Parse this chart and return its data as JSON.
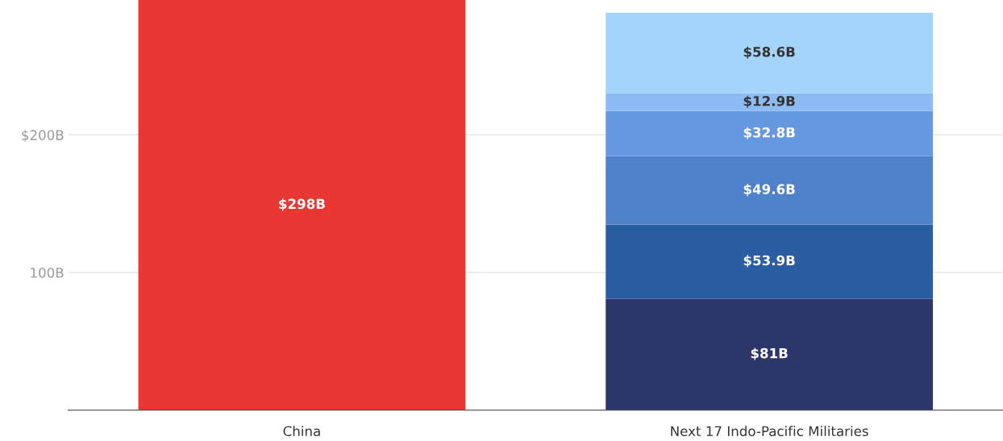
{
  "chart_data": {
    "type": "bar",
    "stacked": true,
    "categories": [
      "China",
      "Next 17 Indo-Pacific Militaries"
    ],
    "series": [
      {
        "color": "#e93833",
        "values": [
          298,
          null
        ],
        "value_labels": [
          "$298B",
          null
        ]
      },
      {
        "color": "#2d366b",
        "values": [
          null,
          81
        ],
        "value_labels": [
          null,
          "$81B"
        ]
      },
      {
        "color": "#2a5da1",
        "values": [
          null,
          53.9
        ],
        "value_labels": [
          null,
          "$53.9B"
        ]
      },
      {
        "color": "#4f82ca",
        "values": [
          null,
          49.6
        ],
        "value_labels": [
          null,
          "$49.6B"
        ]
      },
      {
        "color": "#6698e2",
        "values": [
          null,
          32.8
        ],
        "value_labels": [
          null,
          "$32.8B"
        ]
      },
      {
        "color": "#8cbaf5",
        "values": [
          null,
          12.9
        ],
        "value_labels": [
          null,
          "$12.9B"
        ]
      },
      {
        "color": "#a4d4fa",
        "values": [
          null,
          58.6
        ],
        "value_labels": [
          null,
          "$58.6B"
        ]
      }
    ],
    "yticks": [
      {
        "value": 100,
        "label": "100B"
      },
      {
        "value": 200,
        "label": "$200B"
      }
    ],
    "ylim": [
      0,
      298
    ],
    "grid": "y"
  }
}
